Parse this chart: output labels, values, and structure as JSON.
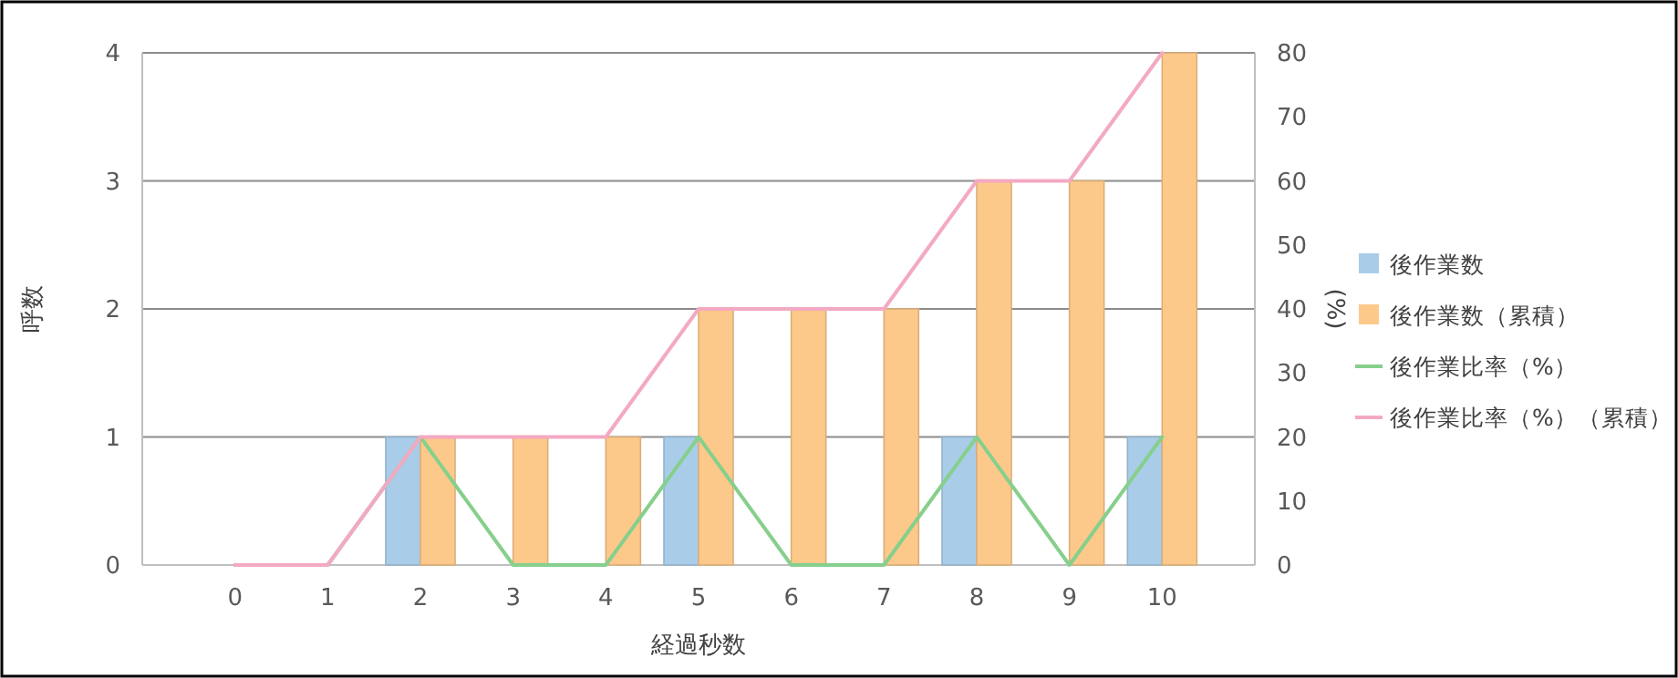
{
  "chart_data": {
    "type": "bar",
    "xlabel": "経過秒数",
    "ylabel": "呼数",
    "y2label": "(%)",
    "categories": [
      "0",
      "1",
      "2",
      "3",
      "4",
      "5",
      "6",
      "7",
      "8",
      "9",
      "10"
    ],
    "series": [
      {
        "name": "後作業数",
        "color": "#a9cde9",
        "values": [
          0,
          0,
          1,
          0,
          0,
          1,
          0,
          0,
          1,
          0,
          1
        ]
      },
      {
        "name": "後作業数（累積）",
        "color": "#fdc98b",
        "values": [
          0,
          0,
          1,
          1,
          1,
          2,
          2,
          2,
          3,
          3,
          4
        ]
      },
      {
        "name": "後作業比率（%）",
        "type": "line",
        "axis": "y2",
        "color": "#86cf8c",
        "values": [
          0,
          0,
          20,
          0,
          0,
          20,
          0,
          0,
          20,
          0,
          20
        ]
      },
      {
        "name": "後作業比率（%）（累積）",
        "type": "line",
        "axis": "y2",
        "color": "#f4a9c2",
        "values": [
          0,
          0,
          20,
          20,
          20,
          40,
          40,
          40,
          60,
          60,
          80
        ]
      }
    ],
    "ylim": [
      0,
      4
    ],
    "yticks": [
      0,
      1,
      2,
      3,
      4
    ],
    "y2lim": [
      0,
      80
    ],
    "y2ticks": [
      0,
      10,
      20,
      30,
      40,
      50,
      60,
      70,
      80
    ],
    "grid": "y",
    "legend": "right"
  }
}
